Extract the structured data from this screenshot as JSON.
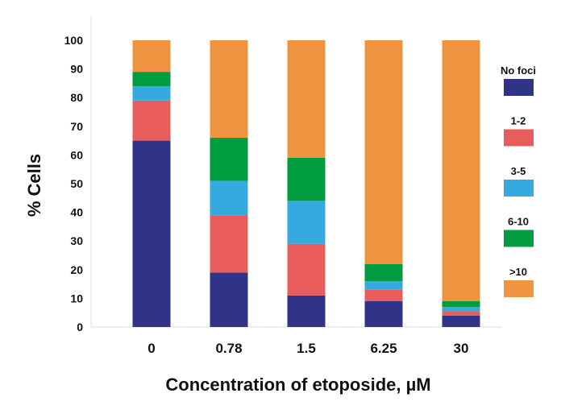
{
  "chart_data": {
    "type": "bar",
    "stacked": true,
    "title": "",
    "xlabel": "Concentration of etoposide, µM",
    "ylabel": "% Cells",
    "ylim": [
      0,
      100
    ],
    "yticks": [
      0,
      10,
      20,
      30,
      40,
      50,
      60,
      70,
      80,
      90,
      100
    ],
    "categories": [
      "0",
      "0.78",
      "1.5",
      "6.25",
      "30"
    ],
    "series": [
      {
        "name": "No foci",
        "color": "#303487",
        "values": [
          65,
          19,
          11,
          9,
          4
        ]
      },
      {
        "name": "1-2",
        "color": "#e85c5c",
        "values": [
          14,
          20,
          18,
          4,
          1.5
        ]
      },
      {
        "name": "3-5",
        "color": "#35a9e0",
        "values": [
          5,
          12,
          15,
          3,
          1.5
        ]
      },
      {
        "name": "6-10",
        "color": "#009c3f",
        "values": [
          5,
          15,
          15,
          6,
          2
        ]
      },
      {
        "name": ">10",
        "color": "#f09441",
        "values": [
          11,
          34,
          41,
          78,
          91
        ]
      }
    ],
    "grid": false,
    "legend": "right"
  }
}
